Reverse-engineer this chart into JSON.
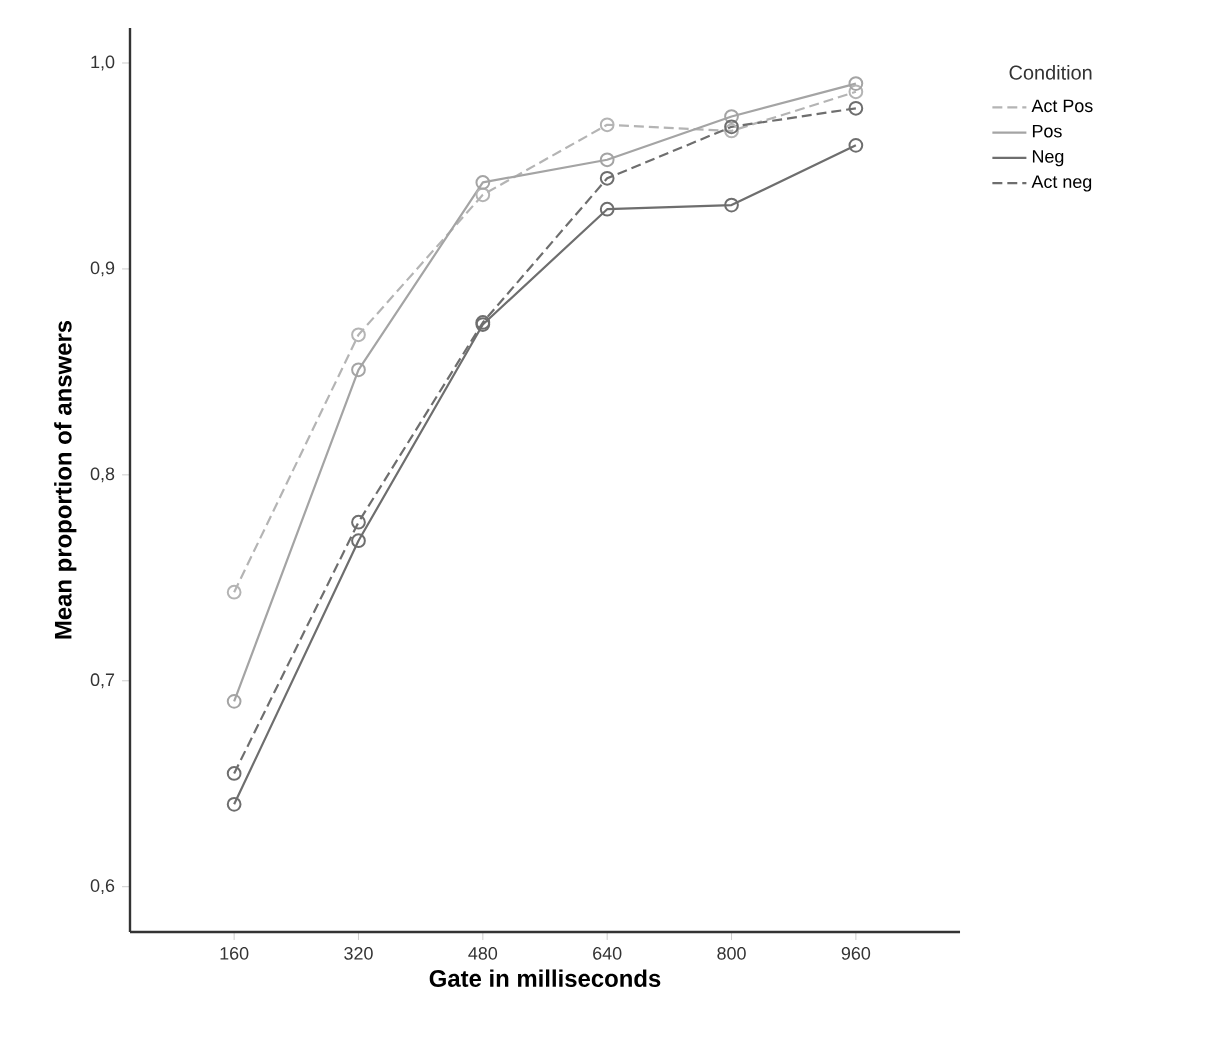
{
  "chart_data": {
    "type": "line",
    "xlabel": "Gate in milliseconds",
    "ylabel": "Mean proportion of answers",
    "legend_title": "Condition",
    "x": [
      160,
      320,
      480,
      640,
      800,
      960
    ],
    "series": [
      {
        "name": "Act Pos",
        "color": "#b4b4b4",
        "line_style": "dashed",
        "values": [
          0.743,
          0.868,
          0.936,
          0.97,
          0.967,
          0.986
        ]
      },
      {
        "name": "Pos",
        "color": "#a4a4a4",
        "line_style": "solid",
        "values": [
          0.69,
          0.851,
          0.942,
          0.953,
          0.974,
          0.99
        ]
      },
      {
        "name": "Neg",
        "color": "#6e6e6e",
        "line_style": "solid",
        "values": [
          0.64,
          0.768,
          0.873,
          0.929,
          0.931,
          0.96
        ]
      },
      {
        "name": "Act neg",
        "color": "#6e6e6e",
        "line_style": "dashed",
        "values": [
          0.655,
          0.777,
          0.874,
          0.944,
          0.969,
          0.978
        ]
      }
    ],
    "xlim": [
      26,
      1094
    ],
    "ylim": [
      0.578,
      1.017
    ],
    "xticks": [
      160,
      320,
      480,
      640,
      800,
      960
    ],
    "yticks": [
      {
        "value": 0.6,
        "label": "0,6"
      },
      {
        "value": 0.7,
        "label": "0,7"
      },
      {
        "value": 0.8,
        "label": "0,8"
      },
      {
        "value": 0.9,
        "label": "0,9"
      },
      {
        "value": 1.0,
        "label": "1,0"
      }
    ],
    "marker": "circle",
    "legend": "top right",
    "grid": false
  }
}
